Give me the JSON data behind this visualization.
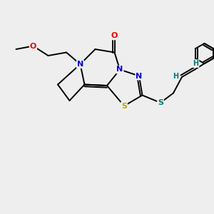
{
  "background_color": "#eeeeee",
  "bond_color": "#000000",
  "atom_colors": {
    "N": "#0000dd",
    "O": "#ee0000",
    "S_yellow": "#bbaa00",
    "S_teal": "#007777",
    "H": "#007777"
  },
  "figsize": [
    3.0,
    3.0
  ],
  "dpi": 100,
  "xlim": [
    0,
    10
  ],
  "ylim": [
    0,
    10
  ]
}
